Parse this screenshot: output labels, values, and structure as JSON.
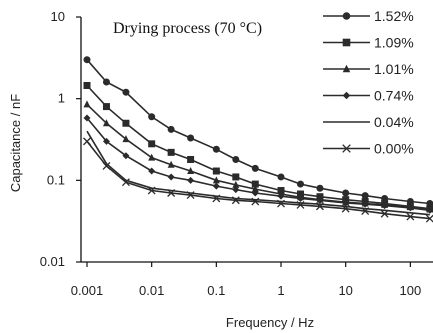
{
  "chart_data": {
    "type": "line",
    "x_scale": "log",
    "y_scale": "log",
    "xlabel": "Frequency / Hz",
    "ylabel": "Capacitance / nF",
    "annotation": "Drying process (70 °C)",
    "xlim": [
      0.001,
      200
    ],
    "ylim": [
      0.01,
      10
    ],
    "x_ticks": [
      "0.001",
      "0.01",
      "0.1",
      "1",
      "10",
      "100"
    ],
    "y_ticks": [
      "0.01",
      "0.1",
      "1",
      "10"
    ],
    "legend_position": "top-right",
    "x": [
      0.001,
      0.002,
      0.004,
      0.01,
      0.02,
      0.04,
      0.1,
      0.2,
      0.4,
      1,
      2,
      4,
      10,
      20,
      40,
      100,
      200
    ],
    "series": [
      {
        "name": "1.52%",
        "marker": "circle",
        "values": [
          3.0,
          1.6,
          1.2,
          0.6,
          0.42,
          0.33,
          0.24,
          0.18,
          0.14,
          0.11,
          0.09,
          0.08,
          0.07,
          0.065,
          0.06,
          0.055,
          0.052
        ]
      },
      {
        "name": "1.09%",
        "marker": "square",
        "values": [
          1.45,
          0.8,
          0.5,
          0.28,
          0.22,
          0.18,
          0.13,
          0.11,
          0.09,
          0.075,
          0.068,
          0.063,
          0.058,
          0.055,
          0.052,
          0.048,
          0.045
        ]
      },
      {
        "name": "1.01%",
        "marker": "triangle",
        "values": [
          0.85,
          0.5,
          0.32,
          0.19,
          0.155,
          0.13,
          0.1,
          0.088,
          0.078,
          0.068,
          0.062,
          0.058,
          0.054,
          0.052,
          0.05,
          0.047,
          0.044
        ]
      },
      {
        "name": "0.74%",
        "marker": "diamond",
        "values": [
          0.58,
          0.3,
          0.2,
          0.13,
          0.11,
          0.1,
          0.085,
          0.077,
          0.07,
          0.064,
          0.06,
          0.057,
          0.053,
          0.051,
          0.049,
          0.046,
          0.043
        ]
      },
      {
        "name": "0.04%",
        "marker": "none",
        "values": [
          0.4,
          0.16,
          0.1,
          0.08,
          0.075,
          0.07,
          0.064,
          0.06,
          0.058,
          0.055,
          0.053,
          0.051,
          0.048,
          0.045,
          0.043,
          0.04,
          0.038
        ]
      },
      {
        "name": "0.00%",
        "marker": "x",
        "values": [
          0.3,
          0.15,
          0.095,
          0.075,
          0.07,
          0.066,
          0.06,
          0.057,
          0.055,
          0.052,
          0.05,
          0.048,
          0.045,
          0.042,
          0.039,
          0.036,
          0.034
        ]
      }
    ],
    "colors": {
      "line": "#2b2b2b",
      "axis": "#111111"
    }
  }
}
